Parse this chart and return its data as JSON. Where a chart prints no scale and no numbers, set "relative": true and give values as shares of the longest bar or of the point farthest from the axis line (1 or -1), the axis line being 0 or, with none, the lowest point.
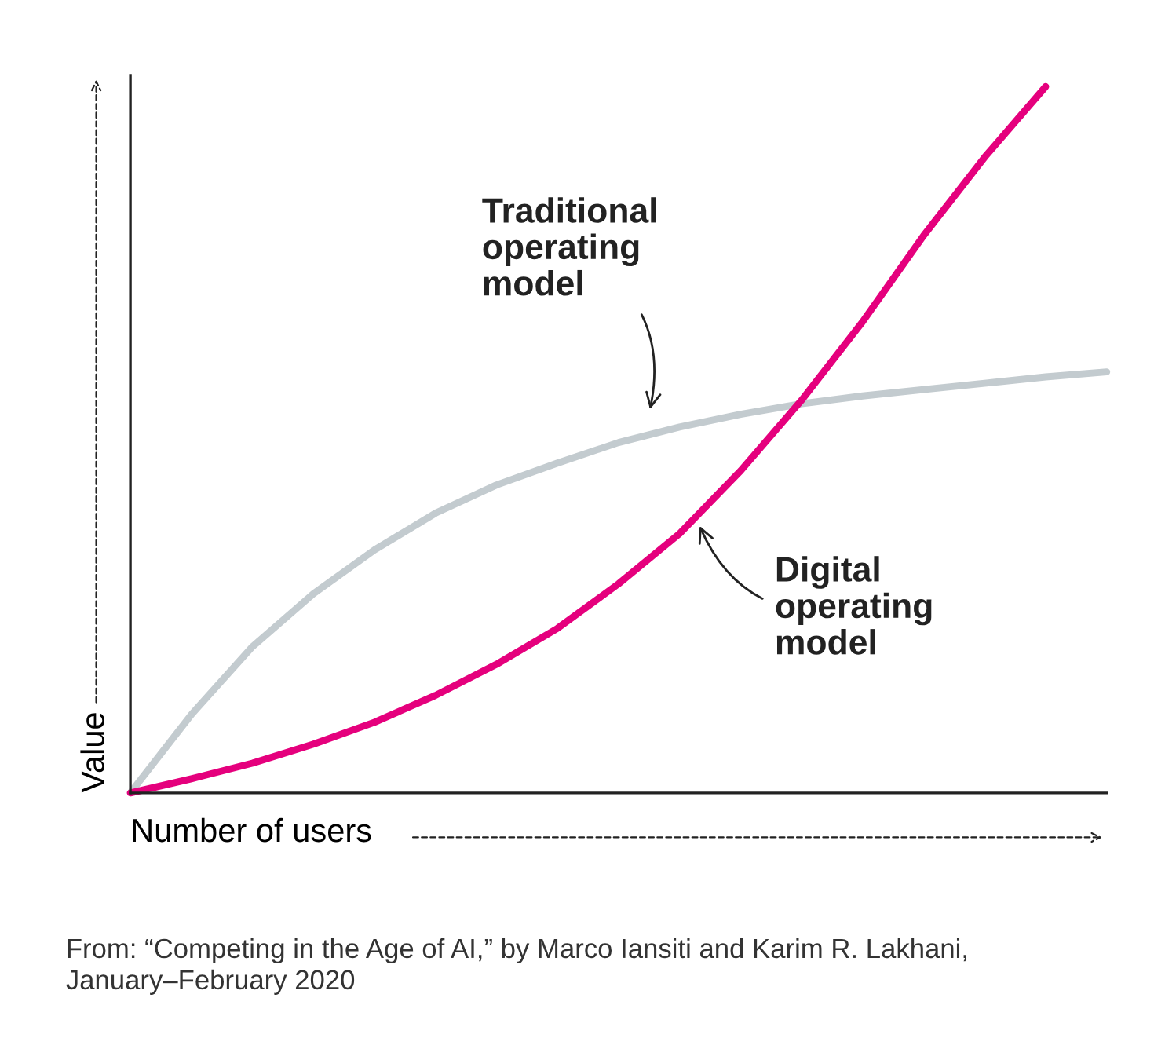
{
  "chart_data": {
    "type": "line",
    "relative": true,
    "xlabel": "Number of users",
    "ylabel": "Value",
    "categories": [
      null,
      null,
      null,
      null,
      null,
      null,
      null,
      null,
      null,
      null,
      null,
      null,
      null,
      null,
      null,
      null,
      null
    ],
    "series": [
      {
        "name": "Traditional operating model",
        "color": "#c3cbcf",
        "values": [
          0,
          0.111,
          0.207,
          0.282,
          0.344,
          0.396,
          0.436,
          0.467,
          0.496,
          0.518,
          0.536,
          0.551,
          0.562,
          0.571,
          0.58,
          0.589,
          0.596
        ]
      },
      {
        "name": "Digital operating model",
        "color": "#e5007d",
        "values": [
          0,
          0.02,
          0.042,
          0.069,
          0.1,
          0.138,
          0.182,
          0.233,
          0.296,
          0.367,
          0.456,
          0.556,
          0.667,
          0.789,
          0.9,
          1.0,
          null
        ]
      }
    ],
    "annotations": [
      "From: “Competing in the Age of AI,” by Marco Iansiti and Karim R. Lakhani, January–February 2020"
    ],
    "legend": false,
    "grid": false,
    "marker": "none",
    "line_style": "solid"
  }
}
